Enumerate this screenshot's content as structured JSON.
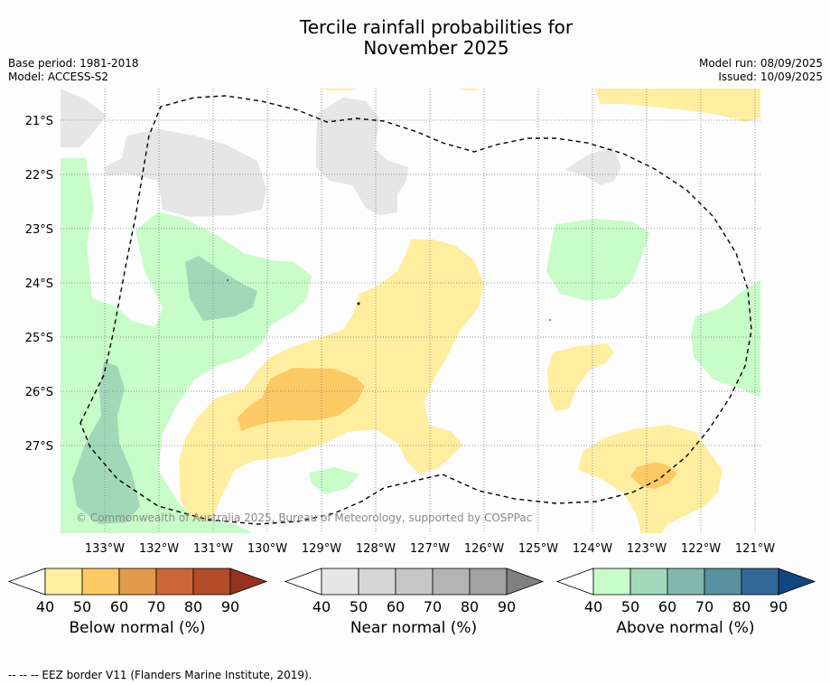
{
  "title_line1": "Tercile rainfall probabilities for",
  "title_line2": "November 2025",
  "meta_left": [
    "Base period: 1981-2018",
    "Model: ACCESS-S2"
  ],
  "meta_right": [
    "Model run: 08/09/2025",
    "Issued: 10/09/2025"
  ],
  "latitude_labels": [
    "21°S",
    "22°S",
    "23°S",
    "24°S",
    "25°S",
    "26°S",
    "27°S"
  ],
  "longitude_labels": [
    "133°W",
    "132°W",
    "131°W",
    "130°W",
    "129°W",
    "128°W",
    "127°W",
    "126°W",
    "125°W",
    "124°W",
    "123°W",
    "122°W",
    "121°W"
  ],
  "copyright": "© Commonwealth of Australia 2025, Bureau of Meteorology, supported by COSPPac",
  "colorbars": [
    {
      "label": "Below normal (%)",
      "ticks": [
        "40",
        "50",
        "60",
        "70",
        "80",
        "90"
      ],
      "colors": [
        "#ffeea0",
        "#fdc965",
        "#e19a4a",
        "#cb6838",
        "#b24c29",
        "#963320"
      ]
    },
    {
      "label": "Near normal (%)",
      "ticks": [
        "40",
        "50",
        "60",
        "70",
        "80",
        "90"
      ],
      "colors": [
        "#e6e6e6",
        "#d6d6d6",
        "#c6c6c6",
        "#b4b4b4",
        "#a2a2a2",
        "#808080"
      ]
    },
    {
      "label": "Above normal (%)",
      "ticks": [
        "40",
        "50",
        "60",
        "70",
        "80",
        "90"
      ],
      "colors": [
        "#c8fcc8",
        "#a2d8b8",
        "#82b8b0",
        "#5890a0",
        "#326898",
        "#12467e"
      ]
    }
  ],
  "footer": "--  --  -- EEZ border V11 (Flanders Marine Institute, 2019)."
}
